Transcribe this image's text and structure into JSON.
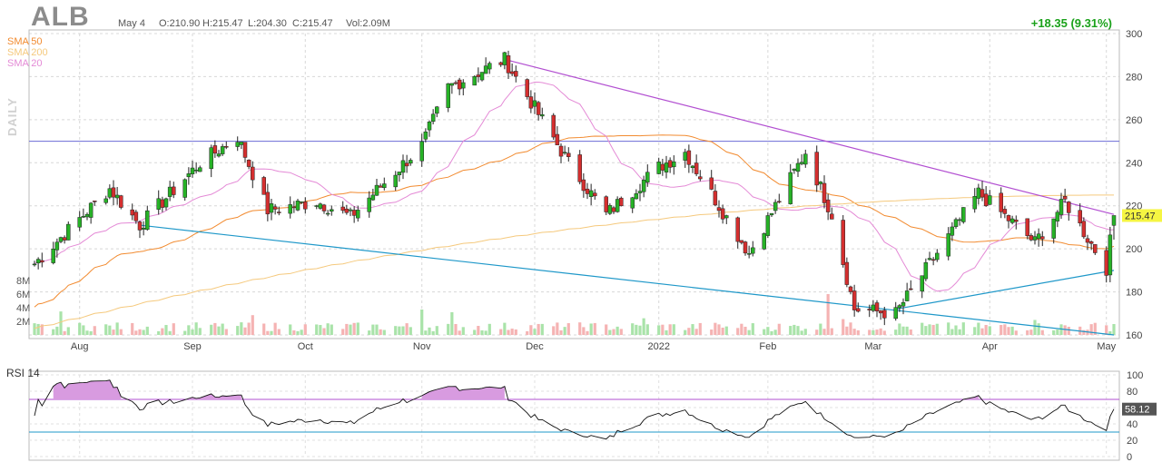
{
  "header": {
    "ticker": "ALB",
    "date": "May 4",
    "open": "O:210.90",
    "high": "H:215.47",
    "low": "L:204.30",
    "close": "C:215.47",
    "volume": "Vol:2.09M",
    "change": "+18.35 (9.31%)"
  },
  "legend": [
    {
      "label": "SMA 50",
      "color": "#f28b30"
    },
    {
      "label": "SMA 200",
      "color": "#f5c97d"
    },
    {
      "label": "SMA 20",
      "color": "#e48ad6"
    }
  ],
  "period_label": "DAILY",
  "volume_labels": [
    "8M",
    "6M",
    "4M",
    "2M"
  ],
  "rsi_title": "RSI 14",
  "last_price_label": "215.47",
  "last_rsi_label": "58.12",
  "colors": {
    "up": "#27b227",
    "down": "#d42f2f",
    "vol_up": "#a9e3a9",
    "vol_down": "#f5b3b3",
    "trend_upper": "#b24fd1",
    "trend_lower": "#1f98c9",
    "hline": "#6b6bd6",
    "sma50": "#f28b30",
    "sma200": "#f5c97d",
    "sma20": "#e48ad6",
    "price_tag": "#f5f542"
  },
  "chart_data": [
    {
      "type": "candlestick",
      "title": "ALB",
      "x_range": [
        "2021-07-21",
        "2022-05-04"
      ],
      "ylim": [
        160,
        300
      ],
      "y_ticks": [
        160,
        180,
        200,
        220,
        240,
        260,
        280,
        300
      ],
      "x_tick_labels": [
        "Aug",
        "Sep",
        "Oct",
        "Nov",
        "Dec",
        "2022",
        "Feb",
        "Mar",
        "Apr",
        "May"
      ],
      "grid": true,
      "legend_position": "top-left",
      "key_closes": [
        {
          "date": "2021-07-21",
          "close": 193
        },
        {
          "date": "2021-08-10",
          "close": 228
        },
        {
          "date": "2021-08-18",
          "close": 211
        },
        {
          "date": "2021-09-03",
          "close": 240
        },
        {
          "date": "2021-09-13",
          "close": 252
        },
        {
          "date": "2021-09-21",
          "close": 218
        },
        {
          "date": "2021-10-04",
          "close": 222
        },
        {
          "date": "2021-10-13",
          "close": 215
        },
        {
          "date": "2021-11-01",
          "close": 248
        },
        {
          "date": "2021-11-08",
          "close": 275
        },
        {
          "date": "2021-11-23",
          "close": 288
        },
        {
          "date": "2021-12-10",
          "close": 240
        },
        {
          "date": "2021-12-20",
          "close": 216
        },
        {
          "date": "2022-01-03",
          "close": 238
        },
        {
          "date": "2022-01-10",
          "close": 245
        },
        {
          "date": "2022-01-27",
          "close": 198
        },
        {
          "date": "2022-02-11",
          "close": 245
        },
        {
          "date": "2022-02-18",
          "close": 216
        },
        {
          "date": "2022-02-24",
          "close": 172
        },
        {
          "date": "2022-03-07",
          "close": 170
        },
        {
          "date": "2022-03-29",
          "close": 226
        },
        {
          "date": "2022-04-13",
          "close": 203
        },
        {
          "date": "2022-04-21",
          "close": 222
        },
        {
          "date": "2022-05-02",
          "close": 191
        },
        {
          "date": "2022-05-04",
          "close": 215.47
        }
      ],
      "indicators": [
        "SMA 50",
        "SMA 200",
        "SMA 20"
      ],
      "horizontal_line": 250,
      "trendlines": [
        {
          "from": {
            "date": "2021-11-23",
            "price": 288
          },
          "to": {
            "date": "2022-05-04",
            "price": 216
          }
        },
        {
          "from": {
            "date": "2021-08-18",
            "price": 211
          },
          "to": {
            "date": "2022-05-04",
            "price": 160
          }
        },
        {
          "from": {
            "date": "2022-03-07",
            "price": 172
          },
          "to": {
            "date": "2022-05-04",
            "price": 190
          }
        }
      ]
    },
    {
      "type": "bar",
      "title": "Volume",
      "y_tick_labels": [
        "8M",
        "6M",
        "4M",
        "2M"
      ],
      "last_volume": "2.09M"
    },
    {
      "type": "line",
      "title": "RSI 14",
      "ylim": [
        0,
        100
      ],
      "y_ticks": [
        0,
        20,
        40,
        60,
        80,
        100
      ],
      "bands": [
        30,
        70
      ],
      "last_value": 58.12
    }
  ]
}
